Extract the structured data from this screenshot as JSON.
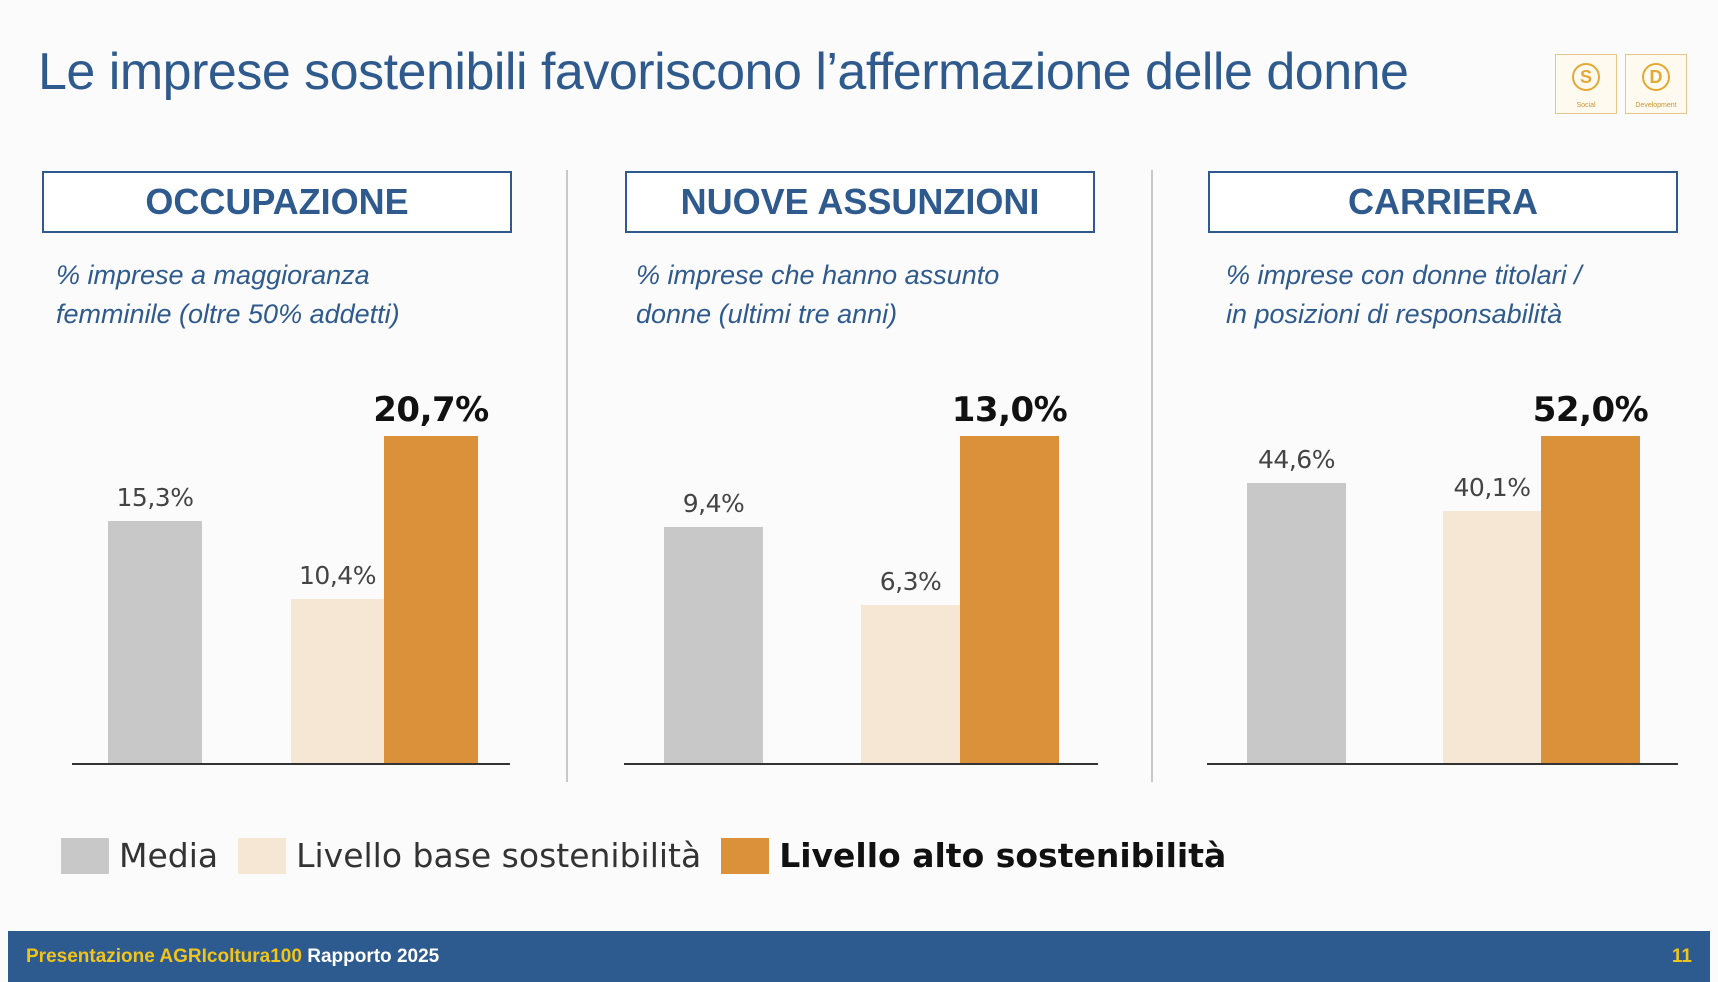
{
  "title": "Le imprese sostenibili favoriscono l’affermazione delle donne",
  "badges": [
    {
      "letter": "S",
      "caption": "Social"
    },
    {
      "letter": "D",
      "caption": "Development"
    }
  ],
  "colors": {
    "media": "#c8c8c8",
    "base": "#f5e7d3",
    "alto": "#db913a",
    "accent": "#2f5a8e"
  },
  "legend": {
    "media": "Media",
    "base": "Livello base sostenibilità",
    "alto": "Livello alto sostenibilità"
  },
  "footer": {
    "brand": "Presentazione AGRIcoltura100",
    "rest": " Rapporto 2025",
    "page": "11"
  },
  "chart_data": [
    {
      "type": "bar",
      "title": "OCCUPAZIONE",
      "subtitle_lines": [
        "% imprese a maggioranza",
        "femminile (oltre 50% addetti)"
      ],
      "categories": [
        "Media",
        "Livello base sostenibilità",
        "Livello alto sostenibilità"
      ],
      "values": [
        15.3,
        10.4,
        20.7
      ],
      "labels": [
        "15,3%",
        "10,4%",
        "20,7%"
      ],
      "grid": false
    },
    {
      "type": "bar",
      "title": "NUOVE ASSUNZIONI",
      "subtitle_lines": [
        "% imprese che hanno assunto",
        "donne (ultimi tre anni)"
      ],
      "categories": [
        "Media",
        "Livello base sostenibilità",
        "Livello alto sostenibilità"
      ],
      "values": [
        9.4,
        6.3,
        13.0
      ],
      "labels": [
        "9,4%",
        "6,3%",
        "13,0%"
      ],
      "grid": false
    },
    {
      "type": "bar",
      "title": "CARRIERA",
      "subtitle_lines": [
        "% imprese con donne titolari /",
        "in posizioni di responsabilità"
      ],
      "categories": [
        "Media",
        "Livello base sostenibilità",
        "Livello alto sostenibilità"
      ],
      "values": [
        44.6,
        40.1,
        52.0
      ],
      "labels": [
        "44,6%",
        "40,1%",
        "52,0%"
      ],
      "grid": false
    }
  ]
}
